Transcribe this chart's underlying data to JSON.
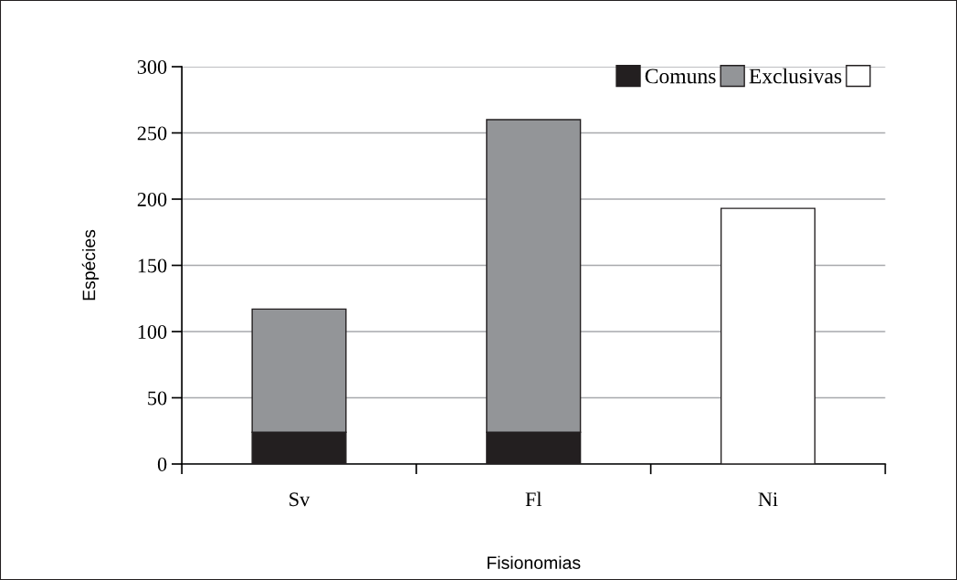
{
  "chart_data": {
    "type": "bar",
    "xlabel": "Fisionomias",
    "ylabel": "Espécies",
    "categories": [
      "Sv",
      "Fl",
      "Ni"
    ],
    "series": [
      {
        "name": "Comuns",
        "color": "#231f20",
        "values": [
          24,
          24,
          null
        ]
      },
      {
        "name": "Exclusivas",
        "color": "#939598",
        "values": [
          93,
          236,
          null
        ]
      },
      {
        "color": "#ffffff",
        "values": [
          null,
          null,
          193
        ]
      }
    ],
    "stacked": true,
    "ylim": [
      0,
      300
    ],
    "yticks": [
      0,
      50,
      100,
      150,
      200,
      250,
      300
    ],
    "grid": "y",
    "legend": "top right"
  }
}
